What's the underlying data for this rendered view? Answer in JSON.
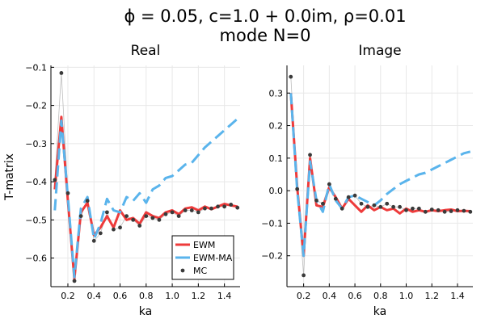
{
  "figure": {
    "title_line1": "ϕ = 0.05, c=1.0 + 0.0im, ρ=0.01",
    "title_line2": "mode N=0"
  },
  "colors": {
    "ewm": "#ee3b3b",
    "ewm_ma": "#5ab4ec",
    "mc": "#3a3a3a",
    "grid": "#e8e8e8",
    "axis": "#000000"
  },
  "chart_data": [
    {
      "type": "line",
      "title": "Real",
      "xlabel": "ka",
      "ylabel": "T-matrix",
      "xlim": [
        0.07,
        1.52
      ],
      "ylim": [
        -0.675,
        -0.095
      ],
      "xticks": [
        0.2,
        0.4,
        0.6,
        0.8,
        1.0,
        1.2,
        1.4
      ],
      "xtick_labels": [
        "0.2",
        "0.4",
        "0.6",
        "0.8",
        "1.0",
        "1.2",
        "1.4"
      ],
      "yticks": [
        -0.6,
        -0.5,
        -0.4,
        -0.3,
        -0.2,
        -0.1
      ],
      "ytick_labels": [
        "−0.6",
        "−0.5",
        "−0.4",
        "−0.3",
        "−0.2",
        "−0.1"
      ],
      "grid": true,
      "legend": {
        "position": "bottom-right",
        "entries": [
          {
            "label": "EWM",
            "series": "EWM"
          },
          {
            "label": "EWM-MA",
            "series": "EWM-MA"
          },
          {
            "label": "MC",
            "series": "MC"
          }
        ]
      },
      "series": [
        {
          "name": "EWM",
          "style": "solid",
          "x": [
            0.1,
            0.15,
            0.2,
            0.25,
            0.3,
            0.35,
            0.4,
            0.45,
            0.5,
            0.55,
            0.6,
            0.65,
            0.7,
            0.75,
            0.8,
            0.85,
            0.9,
            0.95,
            1.0,
            1.05,
            1.1,
            1.15,
            1.2,
            1.25,
            1.3,
            1.35,
            1.4,
            1.45,
            1.5
          ],
          "y": [
            -0.42,
            -0.23,
            -0.45,
            -0.655,
            -0.48,
            -0.455,
            -0.54,
            -0.52,
            -0.49,
            -0.52,
            -0.475,
            -0.5,
            -0.495,
            -0.51,
            -0.48,
            -0.49,
            -0.495,
            -0.48,
            -0.475,
            -0.485,
            -0.47,
            -0.467,
            -0.475,
            -0.465,
            -0.472,
            -0.465,
            -0.458,
            -0.462,
            -0.465
          ]
        },
        {
          "name": "EWM-MA",
          "style": "dashed",
          "x": [
            0.1,
            0.15,
            0.2,
            0.25,
            0.3,
            0.35,
            0.4,
            0.45,
            0.5,
            0.55,
            0.6,
            0.65,
            0.7,
            0.75,
            0.8,
            0.85,
            0.9,
            0.95,
            1.0,
            1.05,
            1.1,
            1.15,
            1.2,
            1.25,
            1.3,
            1.35,
            1.4,
            1.45,
            1.5
          ],
          "y": [
            -0.475,
            -0.24,
            -0.44,
            -0.65,
            -0.47,
            -0.44,
            -0.55,
            -0.51,
            -0.445,
            -0.475,
            -0.48,
            -0.44,
            -0.45,
            -0.43,
            -0.455,
            -0.42,
            -0.41,
            -0.39,
            -0.385,
            -0.37,
            -0.355,
            -0.35,
            -0.33,
            -0.31,
            -0.295,
            -0.28,
            -0.265,
            -0.25,
            -0.235
          ]
        },
        {
          "name": "MC",
          "style": "markers",
          "x": [
            0.1,
            0.15,
            0.2,
            0.25,
            0.3,
            0.35,
            0.4,
            0.45,
            0.5,
            0.55,
            0.6,
            0.65,
            0.7,
            0.75,
            0.8,
            0.85,
            0.9,
            0.95,
            1.0,
            1.05,
            1.1,
            1.15,
            1.2,
            1.25,
            1.3,
            1.35,
            1.4,
            1.45,
            1.5
          ],
          "y": [
            -0.395,
            -0.115,
            -0.43,
            -0.66,
            -0.49,
            -0.45,
            -0.555,
            -0.535,
            -0.48,
            -0.525,
            -0.52,
            -0.49,
            -0.5,
            -0.515,
            -0.49,
            -0.495,
            -0.5,
            -0.485,
            -0.48,
            -0.49,
            -0.475,
            -0.475,
            -0.48,
            -0.47,
            -0.47,
            -0.465,
            -0.465,
            -0.46,
            -0.468
          ]
        }
      ]
    },
    {
      "type": "line",
      "title": "Image",
      "xlabel": "ka",
      "ylabel": "",
      "xlim": [
        0.07,
        1.52
      ],
      "ylim": [
        -0.295,
        0.385
      ],
      "xticks": [
        0.2,
        0.4,
        0.6,
        0.8,
        1.0,
        1.2,
        1.4
      ],
      "xtick_labels": [
        "0.2",
        "0.4",
        "0.6",
        "0.8",
        "1.0",
        "1.2",
        "1.4"
      ],
      "yticks": [
        -0.2,
        -0.1,
        0.0,
        0.1,
        0.2,
        0.3
      ],
      "ytick_labels": [
        "−0.2",
        "−0.1",
        "0.0",
        "0.1",
        "0.2",
        "0.3"
      ],
      "grid": true,
      "series": [
        {
          "name": "EWM",
          "style": "solid",
          "x": [
            0.1,
            0.15,
            0.2,
            0.25,
            0.3,
            0.35,
            0.4,
            0.45,
            0.5,
            0.55,
            0.6,
            0.65,
            0.7,
            0.75,
            0.8,
            0.85,
            0.9,
            0.95,
            1.0,
            1.05,
            1.1,
            1.15,
            1.2,
            1.25,
            1.3,
            1.35,
            1.4,
            1.45,
            1.5
          ],
          "y": [
            0.3,
            0.01,
            -0.2,
            0.1,
            -0.045,
            -0.05,
            0.01,
            -0.02,
            -0.055,
            -0.025,
            -0.045,
            -0.065,
            -0.045,
            -0.06,
            -0.05,
            -0.06,
            -0.055,
            -0.07,
            -0.055,
            -0.065,
            -0.06,
            -0.065,
            -0.06,
            -0.063,
            -0.06,
            -0.058,
            -0.063,
            -0.062,
            -0.063
          ]
        },
        {
          "name": "EWM-MA",
          "style": "dashed",
          "x": [
            0.1,
            0.15,
            0.2,
            0.25,
            0.3,
            0.35,
            0.4,
            0.45,
            0.5,
            0.55,
            0.6,
            0.65,
            0.7,
            0.75,
            0.8,
            0.85,
            0.9,
            0.95,
            1.0,
            1.05,
            1.1,
            1.15,
            1.2,
            1.25,
            1.3,
            1.35,
            1.4,
            1.45,
            1.5
          ],
          "y": [
            0.3,
            0.0,
            -0.2,
            0.09,
            -0.03,
            -0.065,
            0.02,
            -0.03,
            -0.055,
            -0.02,
            -0.015,
            -0.025,
            -0.035,
            -0.045,
            -0.03,
            -0.01,
            0.005,
            0.02,
            0.03,
            0.04,
            0.05,
            0.055,
            0.065,
            0.075,
            0.085,
            0.095,
            0.105,
            0.115,
            0.12
          ]
        },
        {
          "name": "MC",
          "style": "markers",
          "x": [
            0.1,
            0.15,
            0.2,
            0.25,
            0.3,
            0.35,
            0.4,
            0.45,
            0.5,
            0.55,
            0.6,
            0.65,
            0.7,
            0.75,
            0.8,
            0.85,
            0.9,
            0.95,
            1.0,
            1.05,
            1.1,
            1.15,
            1.2,
            1.25,
            1.3,
            1.35,
            1.4,
            1.45,
            1.5
          ],
          "y": [
            0.35,
            0.005,
            -0.26,
            0.11,
            -0.03,
            -0.04,
            0.02,
            -0.025,
            -0.055,
            -0.02,
            -0.015,
            -0.04,
            -0.05,
            -0.045,
            -0.05,
            -0.04,
            -0.05,
            -0.05,
            -0.06,
            -0.055,
            -0.055,
            -0.065,
            -0.058,
            -0.06,
            -0.065,
            -0.063,
            -0.06,
            -0.062,
            -0.065
          ]
        }
      ]
    }
  ]
}
